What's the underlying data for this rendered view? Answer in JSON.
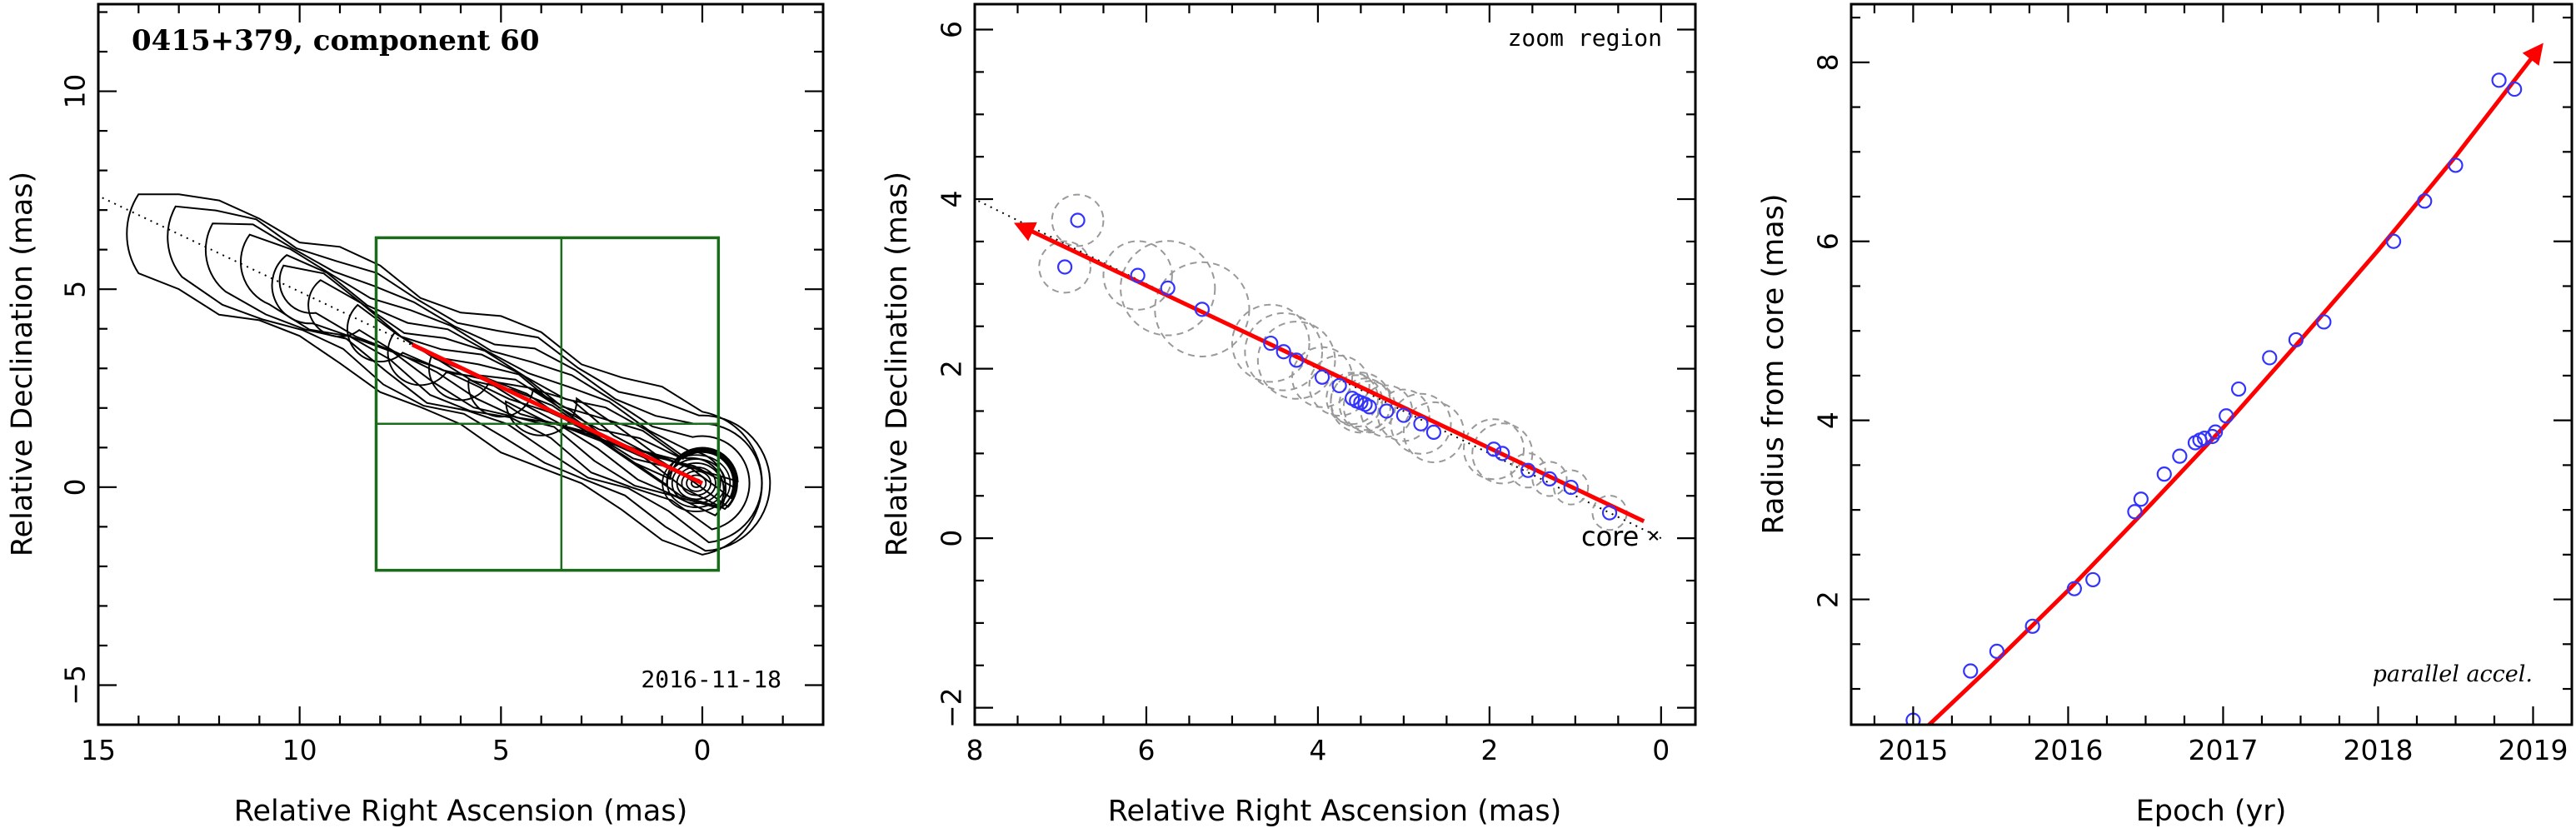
{
  "chart_data": [
    {
      "type": "contour",
      "title": "0415+379, component 60",
      "date_label": "2016-11-18",
      "xlabel": "Relative Right Ascension (mas)",
      "ylabel": "Relative Declination (mas)",
      "xlim": [
        15,
        -3
      ],
      "ylim": [
        -6,
        12.2
      ],
      "xticks": [
        15,
        10,
        5,
        0
      ],
      "yticks": [
        -5,
        0,
        5,
        10
      ],
      "jet_axis_line": {
        "x": [
          15.5,
          0
        ],
        "y": [
          7.6,
          0.1
        ],
        "style": "dotted"
      },
      "trajectory_arrow": {
        "x": [
          7.2,
          0
        ],
        "y": [
          3.6,
          0.1
        ],
        "color": "#ff0000"
      },
      "component_position": {
        "x": 3.5,
        "y": 1.6
      },
      "zoom_box": {
        "x": [
          8.1,
          -0.4
        ],
        "y": [
          -2.1,
          6.3
        ],
        "divider_x": 3.5,
        "divider_y": 1.6,
        "color": "#1a6b1a"
      },
      "jet_core_ridge": {
        "x": [
          0,
          1,
          2,
          3,
          4,
          5,
          6,
          7,
          8,
          9,
          10,
          11,
          12,
          13,
          14
        ],
        "y": [
          0.1,
          0.6,
          1.1,
          1.6,
          2.2,
          2.6,
          3.0,
          3.4,
          4.0,
          4.6,
          5.0,
          5.5,
          5.8,
          6.2,
          6.4
        ]
      }
    },
    {
      "type": "scatter",
      "title": "zoom region",
      "xlabel": "Relative Right Ascension (mas)",
      "ylabel": "Relative Declination (mas)",
      "xlim": [
        8,
        -0.4
      ],
      "ylim": [
        -2.2,
        6.3
      ],
      "xticks": [
        8,
        6,
        4,
        2,
        0
      ],
      "yticks": [
        -2,
        0,
        2,
        4,
        6
      ],
      "core_label": "core",
      "core_position": {
        "x": 0,
        "y": 0
      },
      "jet_axis_line": {
        "x": [
          8,
          0
        ],
        "y": [
          4.0,
          0
        ],
        "style": "dotted"
      },
      "trajectory_arrow": {
        "x": [
          0.2,
          7.5
        ],
        "y": [
          0.2,
          3.7
        ],
        "color": "#ff0000"
      },
      "points": {
        "color": "#3333ff",
        "x": [
          6.8,
          6.95,
          6.1,
          5.75,
          5.35,
          4.55,
          4.4,
          4.25,
          3.95,
          3.75,
          3.6,
          3.55,
          3.5,
          3.45,
          3.4,
          3.2,
          3.0,
          2.8,
          2.65,
          1.95,
          1.85,
          1.55,
          1.3,
          1.05,
          0.6
        ],
        "y": [
          3.75,
          3.2,
          3.1,
          2.95,
          2.7,
          2.3,
          2.2,
          2.1,
          1.9,
          1.8,
          1.65,
          1.62,
          1.6,
          1.58,
          1.55,
          1.5,
          1.45,
          1.35,
          1.25,
          1.05,
          1.0,
          0.8,
          0.7,
          0.6,
          0.3
        ]
      },
      "uncertainty_radii_mas": [
        0.3,
        0.3,
        0.4,
        0.55,
        0.55,
        0.45,
        0.45,
        0.45,
        0.35,
        0.35,
        0.3,
        0.3,
        0.35,
        0.3,
        0.3,
        0.3,
        0.3,
        0.35,
        0.35,
        0.35,
        0.35,
        0.2,
        0.2,
        0.2,
        0.2
      ]
    },
    {
      "type": "scatter",
      "title": "parallel accel.",
      "xlabel": "Epoch (yr)",
      "ylabel": "Radius from core (mas)",
      "xlim": [
        2014.6,
        2019.25
      ],
      "ylim": [
        0.6,
        8.65
      ],
      "xticks": [
        2015,
        2016,
        2017,
        2018,
        2019
      ],
      "yticks": [
        2,
        4,
        6,
        8
      ],
      "points": {
        "color": "#3333ff",
        "x": [
          2015.0,
          2015.37,
          2015.54,
          2015.77,
          2016.04,
          2016.16,
          2016.43,
          2016.47,
          2016.62,
          2016.72,
          2016.82,
          2016.85,
          2016.88,
          2016.93,
          2016.95,
          2017.02,
          2017.1,
          2017.3,
          2017.47,
          2017.65,
          2018.1,
          2018.3,
          2018.5,
          2018.78,
          2018.88
        ],
        "y": [
          0.65,
          1.2,
          1.42,
          1.7,
          2.12,
          2.22,
          2.98,
          3.12,
          3.4,
          3.6,
          3.75,
          3.78,
          3.8,
          3.82,
          3.87,
          4.05,
          4.35,
          4.7,
          4.9,
          5.1,
          6.0,
          6.45,
          6.85,
          7.8,
          7.7
        ]
      },
      "fit_curve": {
        "color": "#ff0000",
        "x": [
          2014.95,
          2015.5,
          2016.0,
          2016.5,
          2017.0,
          2017.5,
          2018.0,
          2018.5,
          2019.05
        ],
        "y": [
          0.35,
          1.25,
          2.1,
          3.0,
          3.92,
          4.9,
          5.9,
          6.95,
          8.18
        ]
      }
    }
  ]
}
